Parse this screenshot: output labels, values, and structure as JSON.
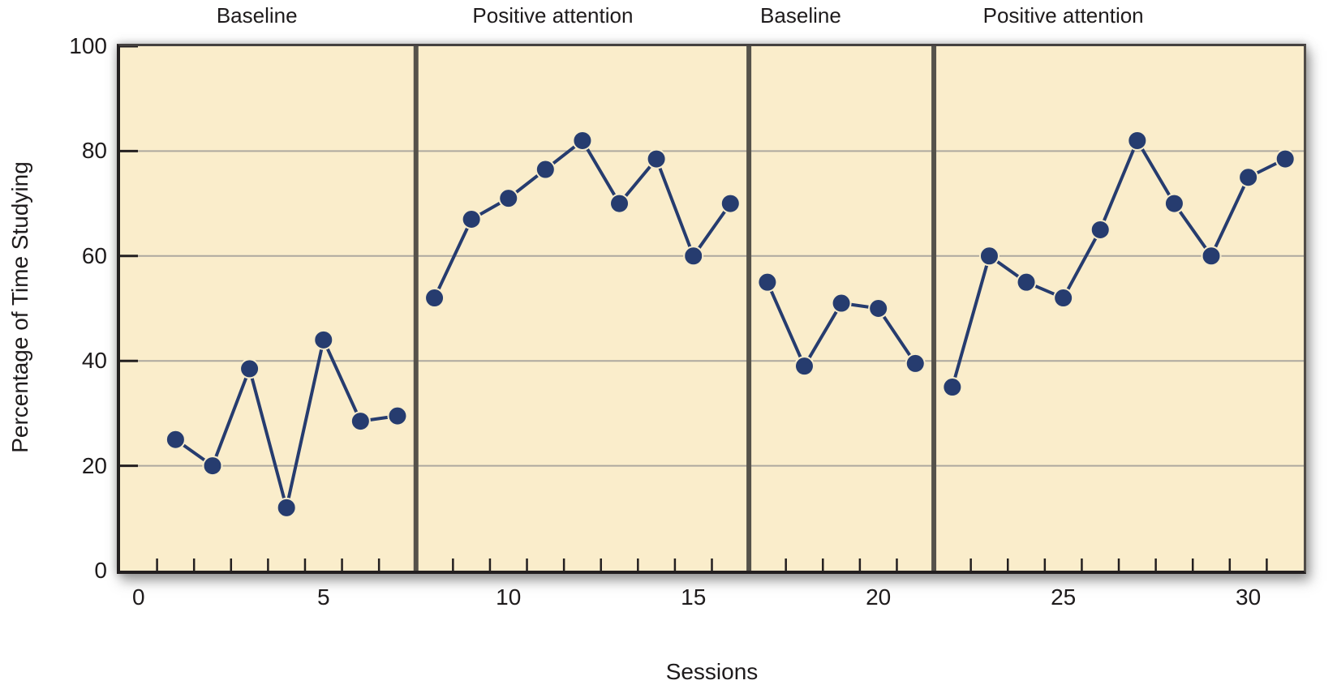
{
  "chart_data": {
    "type": "line",
    "title": "",
    "xlabel": "Sessions",
    "ylabel": "Percentage of Time Studying",
    "xlim": [
      -0.5,
      31.5
    ],
    "ylim": [
      0,
      100
    ],
    "y_ticks": [
      0,
      20,
      40,
      60,
      80,
      100
    ],
    "x_tick_labels": [
      0,
      5,
      10,
      15,
      20,
      25,
      30
    ],
    "x_minor_tick_start": 0.5,
    "x_minor_tick_end": 30.5,
    "x_minor_tick_step": 1,
    "gridlines_y": [
      20,
      40,
      60,
      80
    ],
    "grid": "horizontal-only",
    "legend": "none",
    "phase_dividers_x": [
      7.5,
      16.5,
      21.5
    ],
    "phases": [
      {
        "label": "Baseline",
        "label_center_x": 3.2,
        "sessions": [
          1,
          2,
          3,
          4,
          5,
          6,
          7
        ],
        "values": [
          25,
          20,
          38.5,
          12,
          44,
          28.5,
          29.5
        ]
      },
      {
        "label": "Positive attention",
        "label_center_x": 11.2,
        "sessions": [
          8,
          9,
          10,
          11,
          12,
          13,
          14,
          15,
          16
        ],
        "values": [
          52,
          67,
          71,
          76.5,
          82,
          70,
          78.5,
          60,
          70
        ]
      },
      {
        "label": "Baseline",
        "label_center_x": 17.9,
        "sessions": [
          17,
          18,
          19,
          20,
          21
        ],
        "values": [
          55,
          39,
          51,
          50,
          39.5
        ]
      },
      {
        "label": "Positive attention",
        "label_center_x": 25.0,
        "sessions": [
          22,
          23,
          24,
          25,
          26,
          27,
          28,
          29,
          30,
          31
        ],
        "values": [
          35,
          60,
          55,
          52,
          65,
          82,
          70,
          60,
          75,
          78.5
        ]
      }
    ],
    "colors": {
      "page_background": "#FFFFFF",
      "plot_background": "#FAEDCB",
      "series": "#263C6F",
      "marker_halo": "#F7ECCB",
      "gridline": "#ADA89F",
      "phase_divider": "#55524B",
      "axis": "#231F20",
      "text": "#1E1B1C"
    },
    "marker": {
      "shape": "circle",
      "radius": 11.5
    },
    "line_width": 4,
    "series_connected_across_phases": false
  }
}
